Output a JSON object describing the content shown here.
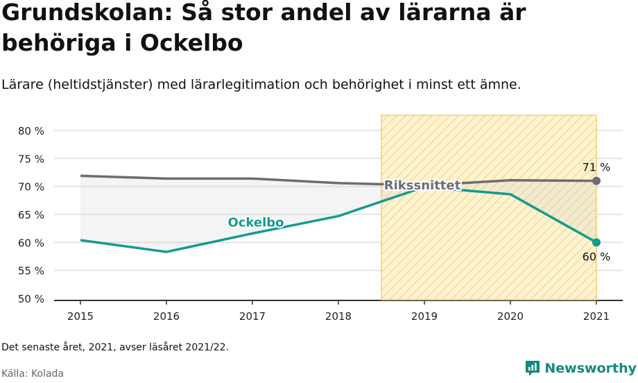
{
  "header": {
    "title": "Grundskolan: Så stor andel av lärarna är behöriga i Ockelbo",
    "subtitle": "Lärare (heltidstjänster) med lärarlegitimation och behörighet i minst ett ämne."
  },
  "footer": {
    "note": "Det senaste året, 2021, avser läsåret 2021/22.",
    "source": "Källa: Kolada",
    "brand": "Newsworthy"
  },
  "colors": {
    "ockelbo": "#139b8e",
    "riks": "#6e6c72",
    "highlight_fill": "#fdf0c8",
    "highlight_stroke": "#f4cf72",
    "brand": "#138a7e"
  },
  "chart_data": {
    "type": "line",
    "x": [
      "2015",
      "2016",
      "2017",
      "2018",
      "2019",
      "2020",
      "2021"
    ],
    "ylim": [
      50,
      80
    ],
    "yticks": [
      50,
      55,
      60,
      65,
      70,
      75,
      80
    ],
    "ytick_labels": [
      "50 %",
      "55 %",
      "60 %",
      "65 %",
      "70 %",
      "75 %",
      "80 %"
    ],
    "highlight_range": [
      "2019",
      "2021"
    ],
    "grid": true,
    "series": [
      {
        "name": "Rikssnittet",
        "values": [
          71.9,
          71.4,
          71.4,
          70.6,
          70.2,
          71.1,
          71.0
        ],
        "end_label": "71 %"
      },
      {
        "name": "Ockelbo",
        "values": [
          60.4,
          58.3,
          61.6,
          64.7,
          69.9,
          68.6,
          60.0
        ],
        "end_label": "60 %"
      }
    ]
  }
}
